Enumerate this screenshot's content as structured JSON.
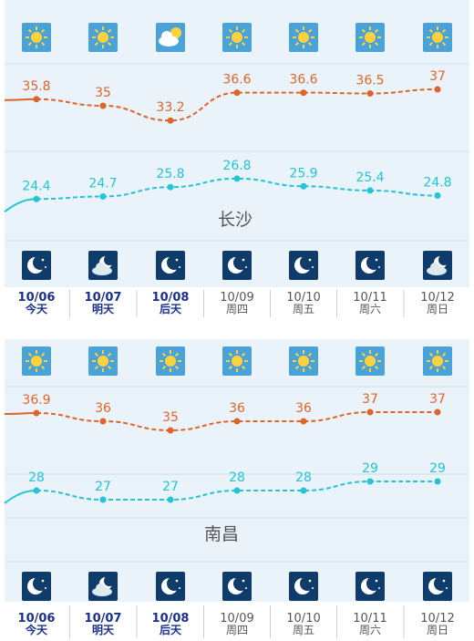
{
  "chart_data": [
    {
      "type": "line",
      "city": "长沙",
      "categories": [
        "10/06",
        "10/07",
        "10/08",
        "10/09",
        "10/10",
        "10/11",
        "10/12"
      ],
      "day_names": [
        "今天",
        "明天",
        "后天",
        "周四",
        "周五",
        "周六",
        "周日"
      ],
      "day_icons": [
        "sun-icon",
        "sun-icon",
        "cloudy-sun-icon",
        "sun-icon",
        "sun-icon",
        "sun-icon",
        "sun-icon"
      ],
      "night_icons": [
        "moon-icon",
        "cloudy-moon-icon",
        "moon-icon",
        "moon-icon",
        "moon-icon",
        "moon-icon",
        "cloudy-moon-icon"
      ],
      "series": [
        {
          "values": [
            35.8,
            35,
            33.2,
            36.6,
            36.6,
            36.5,
            37
          ],
          "labels": [
            "35.8",
            "35",
            "33.2",
            "36.6",
            "36.6",
            "36.5",
            "37"
          ]
        },
        {
          "values": [
            24.4,
            24.7,
            25.8,
            26.8,
            25.9,
            25.4,
            24.8
          ],
          "labels": [
            "24.4",
            "24.7",
            "25.8",
            "26.8",
            "25.9",
            "25.4",
            "24.8"
          ]
        }
      ]
    },
    {
      "type": "line",
      "city": "南昌",
      "categories": [
        "10/06",
        "10/07",
        "10/08",
        "10/09",
        "10/10",
        "10/11",
        "10/12"
      ],
      "day_names": [
        "今天",
        "明天",
        "后天",
        "周四",
        "周五",
        "周六",
        "周日"
      ],
      "day_icons": [
        "sun-icon",
        "sun-icon",
        "sun-icon",
        "sun-icon",
        "sun-icon",
        "sun-icon",
        "sun-icon"
      ],
      "night_icons": [
        "moon-icon",
        "cloudy-moon-icon",
        "moon-icon",
        "moon-icon",
        "moon-icon",
        "moon-icon",
        "moon-icon"
      ],
      "series": [
        {
          "values": [
            36.9,
            36,
            35,
            36,
            36,
            37,
            37
          ],
          "labels": [
            "36.9",
            "36",
            "35",
            "36",
            "36",
            "37",
            "37"
          ]
        },
        {
          "values": [
            28,
            27,
            27,
            28,
            28,
            29,
            29
          ],
          "labels": [
            "28",
            "27",
            "27",
            "28",
            "28",
            "29",
            "29"
          ]
        }
      ]
    }
  ],
  "colors": {
    "high": "#e0642a",
    "low": "#22c4d6",
    "past_date": "#1c2f8f",
    "future_date": "#555555",
    "icon_bg": "#4aa3d8",
    "night_icon_bg": "#0f3c6b",
    "panel_bg": "#e9f3f9"
  }
}
